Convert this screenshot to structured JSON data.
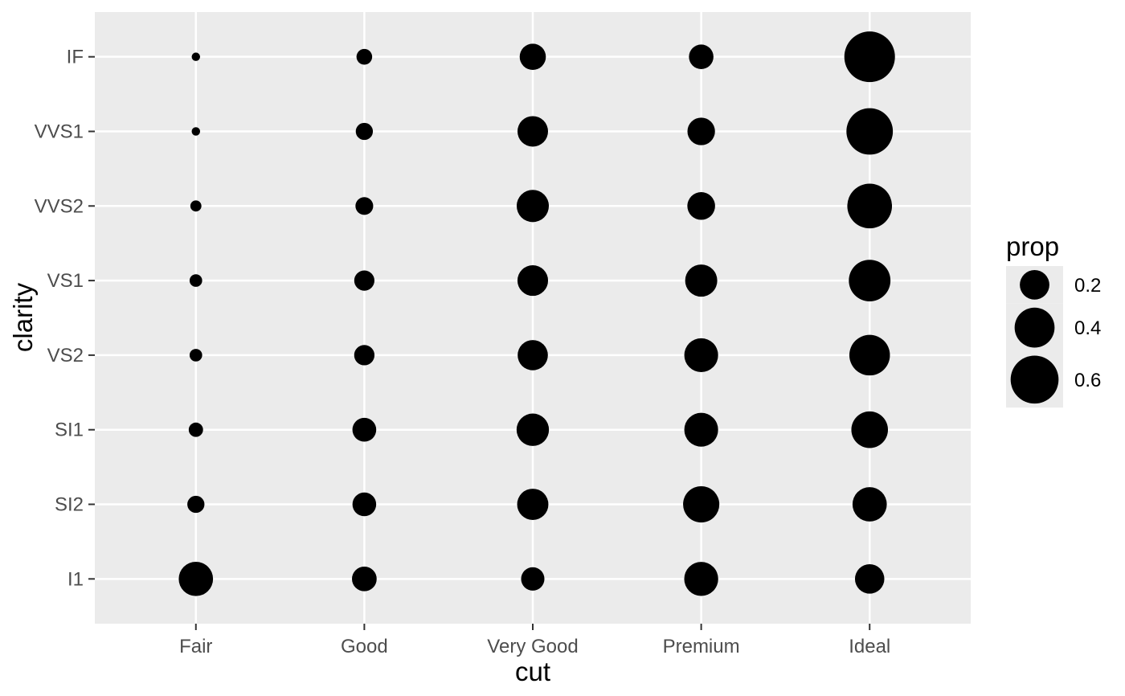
{
  "chart_data": {
    "type": "scatter",
    "variant": "bubble-count-plot",
    "title": "",
    "xlabel": "cut",
    "ylabel": "clarity",
    "legend_position": "right",
    "grid": true,
    "x_categories": [
      "Fair",
      "Good",
      "Very Good",
      "Premium",
      "Ideal"
    ],
    "y_categories_top_to_bottom": [
      "IF",
      "VVS1",
      "VVS2",
      "VS1",
      "VS2",
      "SI1",
      "SI2",
      "I1"
    ],
    "size_variable": "prop",
    "rows": [
      {
        "clarity": "IF",
        "props": [
          0.005,
          0.04,
          0.15,
          0.128,
          0.677
        ]
      },
      {
        "clarity": "VVS1",
        "props": [
          0.005,
          0.051,
          0.216,
          0.169,
          0.56
        ]
      },
      {
        "clarity": "VVS2",
        "props": [
          0.014,
          0.056,
          0.244,
          0.172,
          0.514
        ]
      },
      {
        "clarity": "VS1",
        "props": [
          0.021,
          0.079,
          0.217,
          0.243,
          0.439
        ]
      },
      {
        "clarity": "VS2",
        "props": [
          0.021,
          0.08,
          0.211,
          0.274,
          0.414
        ]
      },
      {
        "clarity": "SI1",
        "props": [
          0.031,
          0.119,
          0.248,
          0.274,
          0.328
        ]
      },
      {
        "clarity": "SI2",
        "props": [
          0.051,
          0.118,
          0.228,
          0.321,
          0.283
        ]
      },
      {
        "clarity": "I1",
        "props": [
          0.283,
          0.13,
          0.113,
          0.277,
          0.197
        ]
      }
    ],
    "size_scale": {
      "min_prop": 0.005,
      "max_prop": 0.677
    }
  },
  "legend": {
    "title": "prop",
    "entries": [
      {
        "label": "0.2",
        "value": 0.2
      },
      {
        "label": "0.4",
        "value": 0.4
      },
      {
        "label": "0.6",
        "value": 0.6
      }
    ]
  },
  "colors": {
    "background": "#FFFFFF",
    "panel_bg": "#EBEBEB",
    "grid": "#FFFFFF",
    "point": "#000000",
    "tick_mark": "#333333",
    "tick_label": "#4D4D4D",
    "axis_title": "#000000",
    "legend_key_bg": "#EBEBEB"
  }
}
